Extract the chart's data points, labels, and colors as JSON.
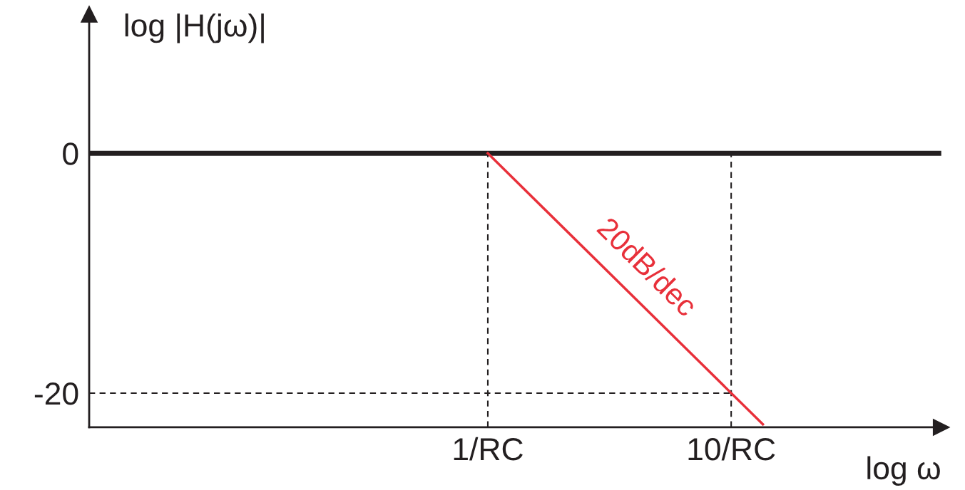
{
  "chart_data": {
    "type": "line",
    "xlabel": "log ω",
    "ylabel": "log |H(jω)|",
    "log": "x",
    "xlim": [
      0.023,
      73
    ],
    "ylim": [
      -22.85,
      11.6
    ],
    "xticks": [
      {
        "value": 1,
        "label": "1/RC"
      },
      {
        "value": 10,
        "label": "10/RC"
      }
    ],
    "yticks": [
      0,
      {
        "value": -20,
        "label": "-20"
      }
    ],
    "series": [
      {
        "x": [
          0.023,
          73
        ],
        "values": [
          0,
          0
        ],
        "color": "#231f20"
      },
      {
        "x": [
          1,
          13.5
        ],
        "values": [
          0,
          -22.6
        ],
        "color": "#e8303a"
      }
    ],
    "ref_lines": [
      {
        "axis": "x",
        "value": 1,
        "line_style": "dashed",
        "color": "#231f20"
      },
      {
        "axis": "x",
        "value": 10,
        "line_style": "dashed",
        "color": "#231f20"
      },
      {
        "axis": "y",
        "value": -20,
        "line_style": "dashed",
        "color": "#231f20"
      }
    ],
    "annotations": [
      "20dB/dec"
    ],
    "grid": false,
    "legend": false,
    "marker": "none",
    "line_style": "solid"
  }
}
